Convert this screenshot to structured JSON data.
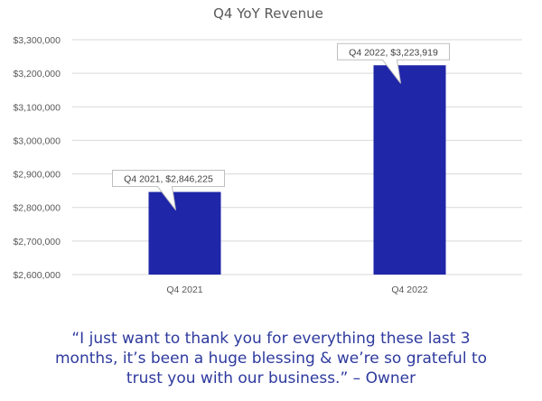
{
  "chart_data": {
    "type": "bar",
    "title": "Q4 YoY Revenue",
    "categories": [
      "Q4 2021",
      "Q4 2022"
    ],
    "values": [
      2846225,
      3223919
    ],
    "data_labels": [
      "Q4 2021, $2,846,225",
      "Q4 2022, $3,223,919"
    ],
    "ylim": [
      2600000,
      3300000
    ],
    "yticks": [
      2600000,
      2700000,
      2800000,
      2900000,
      3000000,
      3100000,
      3200000,
      3300000
    ],
    "ytick_labels": [
      "$2,600,000",
      "$2,700,000",
      "$2,800,000",
      "$2,900,000",
      "$3,000,000",
      "$3,100,000",
      "$3,200,000",
      "$3,300,000"
    ],
    "grid": true,
    "legend": "none",
    "bar_color": "#1f26a8",
    "xlabel": "",
    "ylabel": ""
  },
  "quote": {
    "lines": [
      "“I just want to thank you for everything these last 3",
      "months, it’s been a huge blessing & we’re so grateful to",
      "trust you with our business.” – Owner"
    ]
  }
}
